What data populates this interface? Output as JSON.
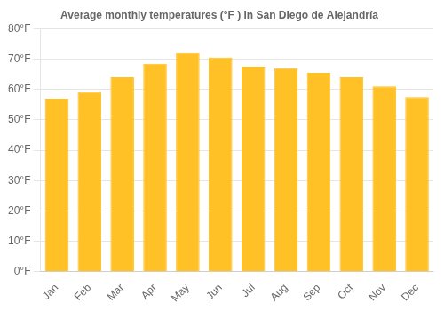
{
  "chart_data": {
    "type": "bar",
    "title": "Average monthly temperatures (°F ) in San Diego de Alejandría",
    "categories": [
      "Jan",
      "Feb",
      "Mar",
      "Apr",
      "May",
      "Jun",
      "Jul",
      "Aug",
      "Sep",
      "Oct",
      "Nov",
      "Dec"
    ],
    "values": [
      57.0,
      59.2,
      64.0,
      68.5,
      72.0,
      70.5,
      67.5,
      67.0,
      65.5,
      64.0,
      61.0,
      57.5
    ],
    "color": "#FFC125",
    "ylim": [
      0,
      80
    ],
    "yticks": [
      {
        "value": 0,
        "label": "0°F"
      },
      {
        "value": 10,
        "label": "10°F"
      },
      {
        "value": 20,
        "label": "20°F"
      },
      {
        "value": 30,
        "label": "30°F"
      },
      {
        "value": 40,
        "label": "40°F"
      },
      {
        "value": 50,
        "label": "50°F"
      },
      {
        "value": 60,
        "label": "60°F"
      },
      {
        "value": 70,
        "label": "70°F"
      },
      {
        "value": 80,
        "label": "80°F"
      }
    ],
    "grid": true
  }
}
